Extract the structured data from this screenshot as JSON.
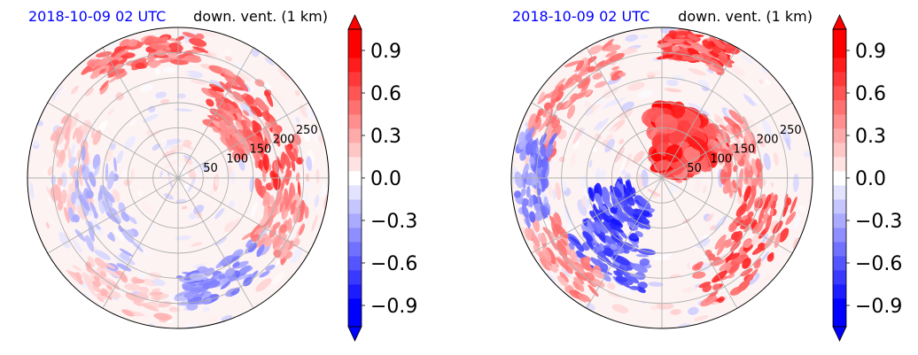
{
  "chart_data": [
    {
      "type": "heatmap",
      "projection": "polar",
      "title_left": "2018-10-09 02 UTC",
      "title_right": "down. vent. (1 km)",
      "radial_ticks": [
        "50",
        "100",
        "150",
        "200",
        "250"
      ],
      "radial_range": [
        0,
        300
      ],
      "angular_gridlines_deg": [
        0,
        30,
        60,
        90,
        120,
        150,
        180,
        210,
        240,
        270,
        300,
        330
      ],
      "grid": true,
      "colorbar": {
        "cmap": "bwr",
        "range": [
          -1.05,
          1.05
        ],
        "levels": 21,
        "extend": "both",
        "tick_labels": [
          "−0.9",
          "−0.6",
          "−0.3",
          "0.0",
          "0.3",
          "0.6",
          "0.9"
        ],
        "tick_values": [
          -0.9,
          -0.6,
          -0.3,
          0.0,
          0.3,
          0.6,
          0.9
        ]
      },
      "features": [
        {
          "kind": "band",
          "sign": "positive",
          "r": [
            160,
            250
          ],
          "theta_deg": [
            -10,
            70
          ],
          "intensity": 0.85
        },
        {
          "kind": "band",
          "sign": "positive",
          "r": [
            230,
            290
          ],
          "theta_deg": [
            80,
            130
          ],
          "intensity": 0.75
        },
        {
          "kind": "band",
          "sign": "positive",
          "r": [
            120,
            180
          ],
          "theta_deg": [
            20,
            60
          ],
          "intensity": 0.65
        },
        {
          "kind": "band",
          "sign": "positive",
          "r": [
            180,
            270
          ],
          "theta_deg": [
            -40,
            -10
          ],
          "intensity": 0.55
        },
        {
          "kind": "band",
          "sign": "positive",
          "r": [
            180,
            260
          ],
          "theta_deg": [
            150,
            200
          ],
          "intensity": 0.3
        },
        {
          "kind": "band",
          "sign": "negative",
          "r": [
            120,
            230
          ],
          "theta_deg": [
            160,
            240
          ],
          "intensity": 0.35
        },
        {
          "kind": "band",
          "sign": "negative",
          "r": [
            190,
            260
          ],
          "theta_deg": [
            270,
            320
          ],
          "intensity": 0.55
        },
        {
          "kind": "band",
          "sign": "positive",
          "r": [
            220,
            290
          ],
          "theta_deg": [
            220,
            265
          ],
          "intensity": 0.3
        }
      ]
    },
    {
      "type": "heatmap",
      "projection": "polar",
      "title_left": "2018-10-09 02 UTC",
      "title_right": "down. vent. (1 km)",
      "radial_ticks": [
        "50",
        "100",
        "150",
        "200",
        "250"
      ],
      "radial_range": [
        0,
        300
      ],
      "angular_gridlines_deg": [
        0,
        30,
        60,
        90,
        120,
        150,
        180,
        210,
        240,
        270,
        300,
        330
      ],
      "grid": true,
      "colorbar": {
        "cmap": "bwr",
        "range": [
          -1.05,
          1.05
        ],
        "levels": 21,
        "extend": "both",
        "tick_labels": [
          "−0.9",
          "−0.6",
          "−0.3",
          "0.0",
          "0.3",
          "0.6",
          "0.9"
        ],
        "tick_values": [
          -0.9,
          -0.6,
          -0.3,
          0.0,
          0.3,
          0.6,
          0.9
        ]
      },
      "features": [
        {
          "kind": "blob",
          "sign": "positive",
          "r": [
            20,
            140
          ],
          "theta_deg": [
            20,
            100
          ],
          "intensity": 1.0
        },
        {
          "kind": "band",
          "sign": "positive",
          "r": [
            120,
            200
          ],
          "theta_deg": [
            -10,
            40
          ],
          "intensity": 0.6
        },
        {
          "kind": "band",
          "sign": "positive",
          "r": [
            170,
            270
          ],
          "theta_deg": [
            -70,
            -10
          ],
          "intensity": 0.85
        },
        {
          "kind": "band",
          "sign": "positive",
          "r": [
            220,
            290
          ],
          "theta_deg": [
            110,
            170
          ],
          "intensity": 0.6
        },
        {
          "kind": "band",
          "sign": "positive",
          "r": [
            240,
            295
          ],
          "theta_deg": [
            60,
            90
          ],
          "intensity": 0.9
        },
        {
          "kind": "band",
          "sign": "negative",
          "r": [
            60,
            150
          ],
          "theta_deg": [
            190,
            250
          ],
          "intensity": 0.9
        },
        {
          "kind": "band",
          "sign": "negative",
          "r": [
            150,
            230
          ],
          "theta_deg": [
            210,
            260
          ],
          "intensity": 0.8
        },
        {
          "kind": "band",
          "sign": "positive",
          "r": [
            220,
            290
          ],
          "theta_deg": [
            200,
            240
          ],
          "intensity": 0.55
        },
        {
          "kind": "band",
          "sign": "negative",
          "r": [
            230,
            290
          ],
          "theta_deg": [
            160,
            200
          ],
          "intensity": 0.6
        }
      ]
    }
  ]
}
